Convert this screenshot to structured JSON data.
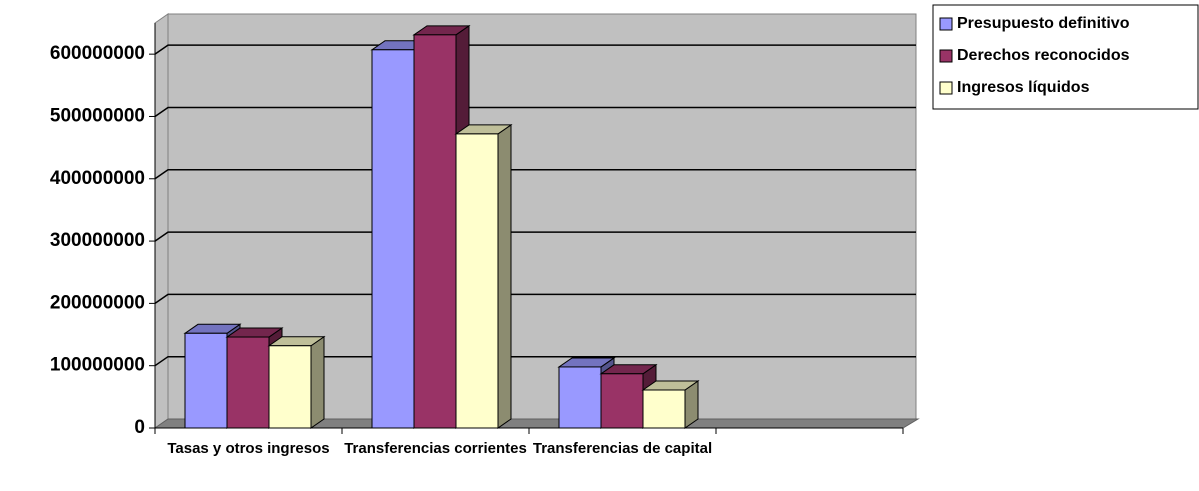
{
  "chart_data": {
    "type": "bar3d",
    "categories": [
      "Tasas y otros ingresos",
      "Transferencias corrientes",
      "Transferencias de capital",
      null
    ],
    "series": [
      {
        "name": "Presupuesto definitivo",
        "color": "#9999ff",
        "values": [
          152000000,
          607000000,
          98000000,
          null
        ]
      },
      {
        "name": "Derechos reconocidos",
        "color": "#993366",
        "values": [
          146000000,
          631000000,
          87000000,
          null
        ]
      },
      {
        "name": "Ingresos líquidos",
        "color": "#ffffcc",
        "values": [
          132000000,
          472000000,
          61000000,
          null
        ]
      }
    ],
    "ylim": [
      0,
      650000000
    ],
    "yticks": [
      0,
      100000000,
      200000000,
      300000000,
      400000000,
      500000000,
      600000000
    ],
    "grid": true,
    "legend": "top-right"
  }
}
